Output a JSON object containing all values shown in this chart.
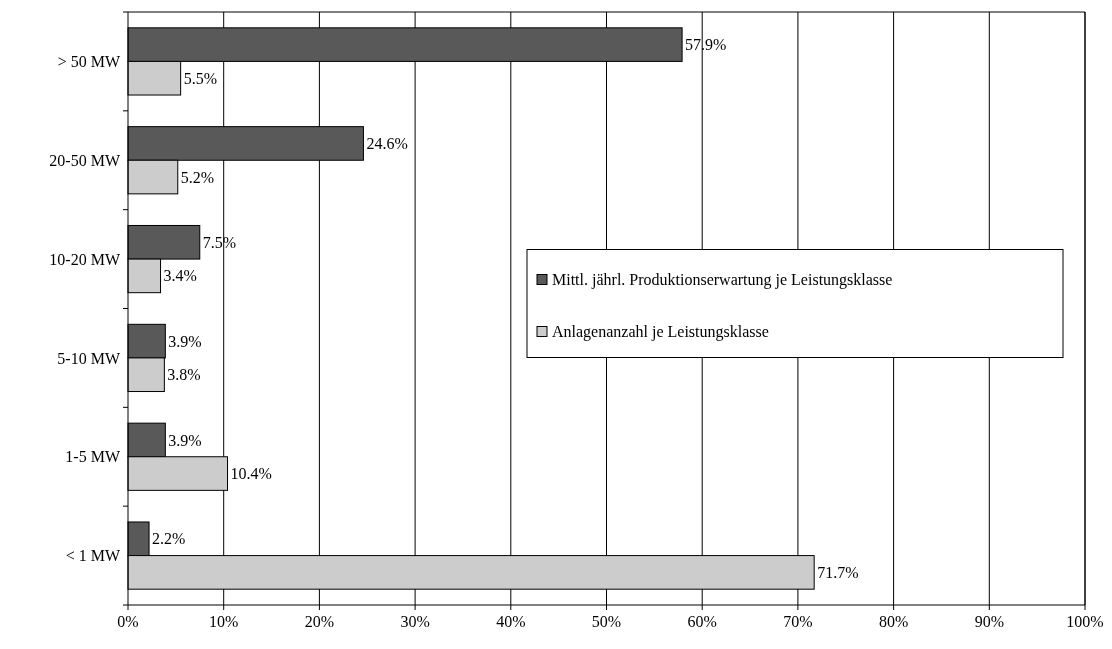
{
  "chart_data": {
    "type": "bar",
    "orientation": "horizontal",
    "categories": [
      "> 50 MW",
      "20-50 MW",
      "10-20 MW",
      "5-10 MW",
      "1-5 MW",
      "< 1 MW"
    ],
    "series": [
      {
        "name": "Mittl. jährl. Produktionserwartung je Leistungsklasse",
        "color": "#595959",
        "values": [
          57.9,
          24.6,
          7.5,
          3.9,
          3.9,
          2.2
        ],
        "value_labels": [
          "57.9%",
          "24.6%",
          "7.5%",
          "3.9%",
          "3.9%",
          "2.2%"
        ]
      },
      {
        "name": "Anlagenanzahl je Leistungsklasse",
        "color": "#cccccc",
        "values": [
          5.5,
          5.2,
          3.4,
          3.8,
          10.4,
          71.7
        ],
        "value_labels": [
          "5.5%",
          "5.2%",
          "3.4%",
          "3.8%",
          "10.4%",
          "71.7%"
        ]
      }
    ],
    "xlim": [
      0,
      100
    ],
    "xticks": [
      {
        "value": 0,
        "label": "0%"
      },
      {
        "value": 10,
        "label": "10%"
      },
      {
        "value": 20,
        "label": "20%"
      },
      {
        "value": 30,
        "label": "30%"
      },
      {
        "value": 40,
        "label": "40%"
      },
      {
        "value": 50,
        "label": "50%"
      },
      {
        "value": 60,
        "label": "60%"
      },
      {
        "value": 70,
        "label": "70%"
      },
      {
        "value": 80,
        "label": "80%"
      },
      {
        "value": 90,
        "label": "90%"
      },
      {
        "value": 100,
        "label": "100%"
      }
    ],
    "grid": "x",
    "legend": "right"
  }
}
